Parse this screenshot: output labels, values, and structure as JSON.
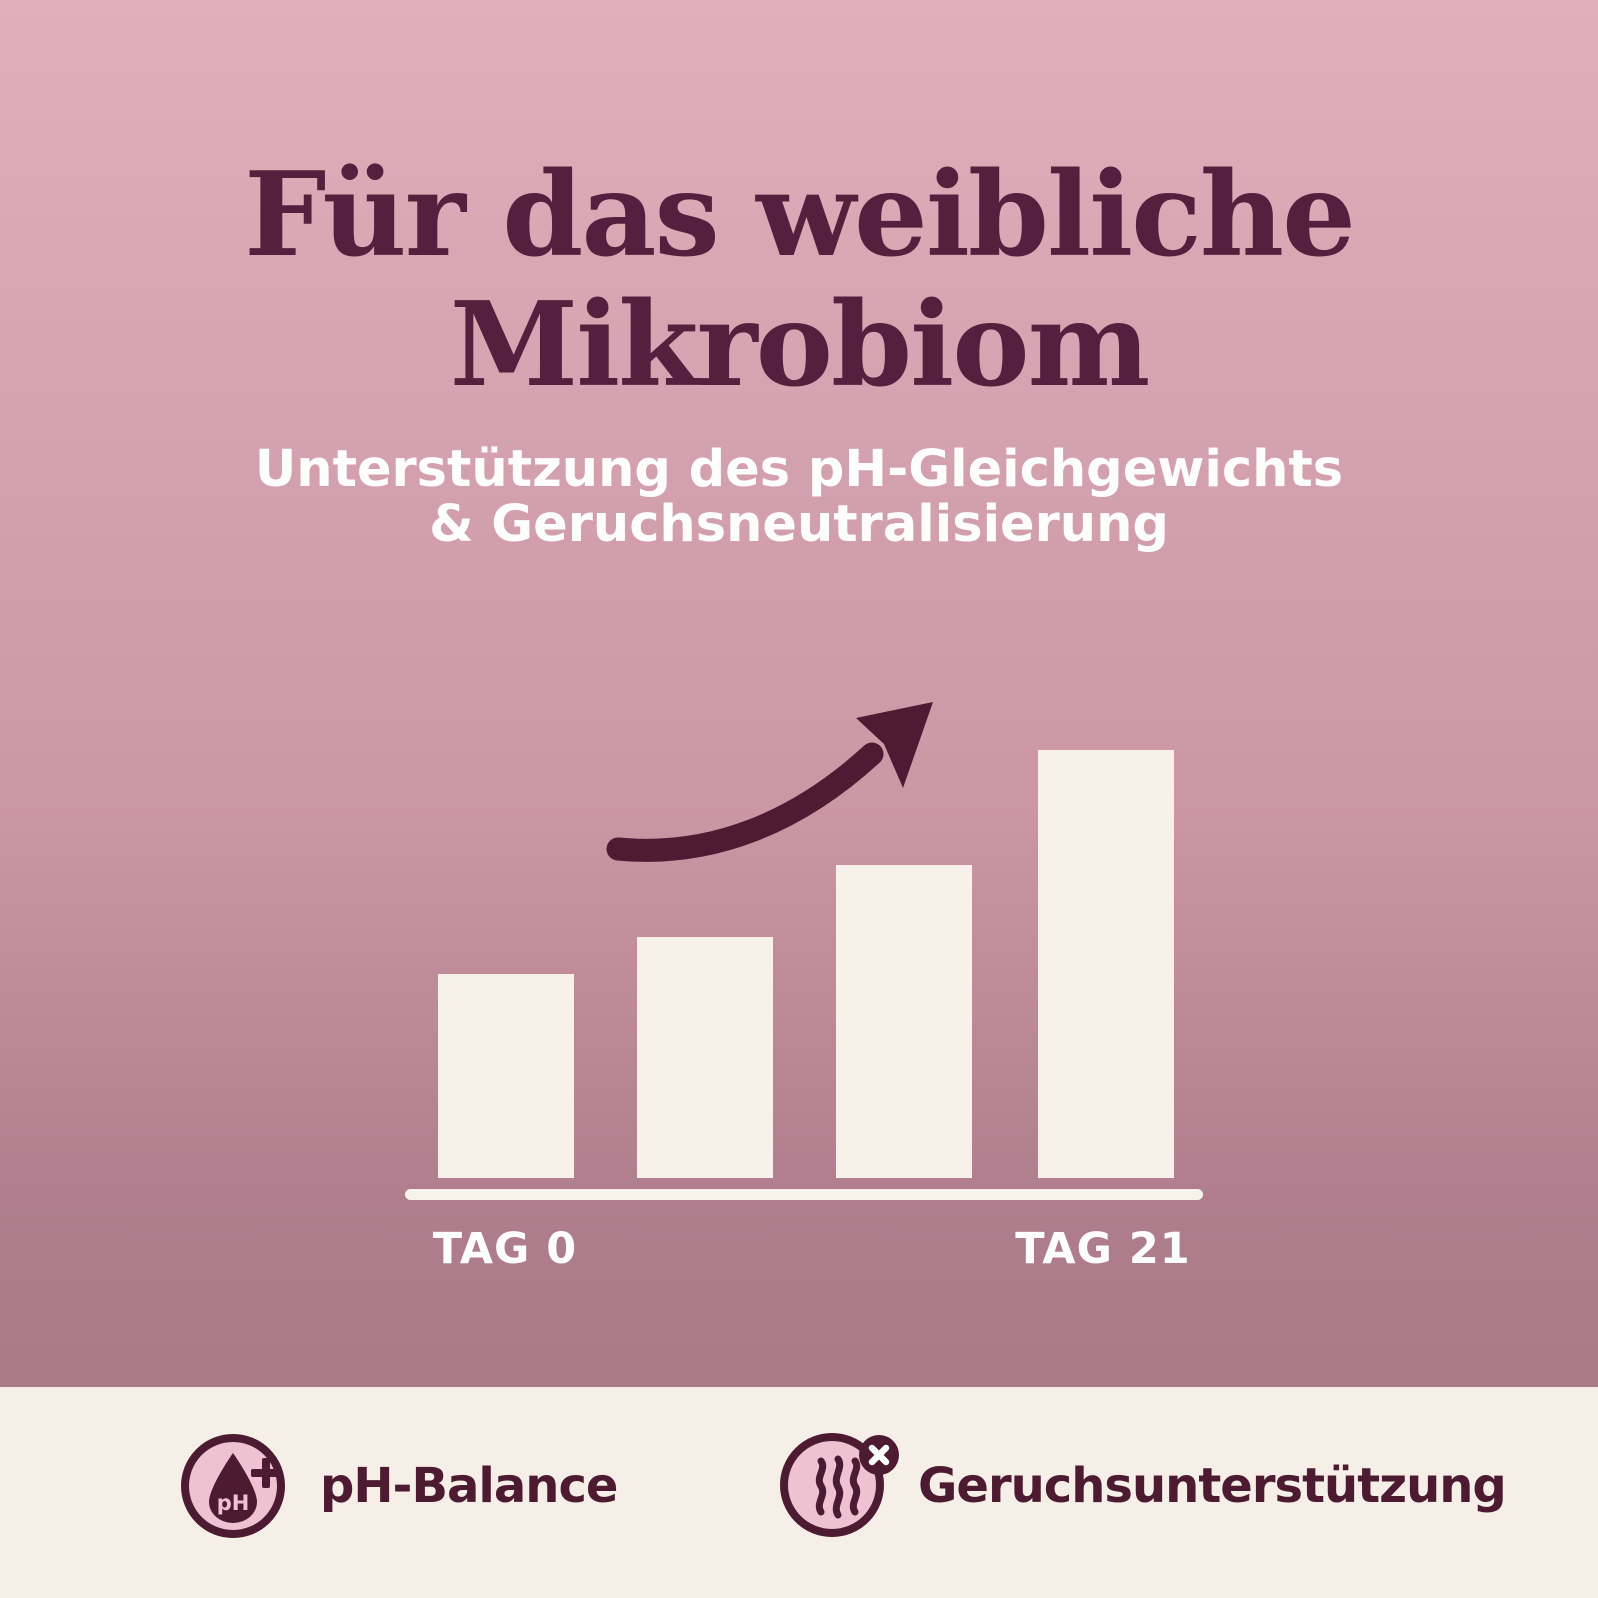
{
  "header": {
    "title_line1": "Für das weibliche",
    "title_line2": "Mikrobiom",
    "subtitle_line1": "Unterstützung des pH-Gleichgewichts",
    "subtitle_line2": "& Geruchsneutralisierung"
  },
  "chart_data": {
    "type": "bar",
    "categories": [
      "TAG 0",
      "",
      "",
      "TAG 21"
    ],
    "values": [
      204,
      241,
      313,
      428
    ],
    "values_unit": "relative bar height in px (unlabeled growth scale)",
    "visible_axis_labels": [
      "TAG 0",
      "TAG 21"
    ],
    "title": "",
    "xlabel": "",
    "ylabel": "",
    "grid": false,
    "legend": false,
    "bar_color": "#f7f1ea",
    "axis_color": "#f7f2ea",
    "annotations": [
      "hand-drawn curved arrow pointing up-right above the bars"
    ]
  },
  "footer": {
    "features": [
      {
        "icon": "ph-droplet-plus-icon",
        "icon_text": "pH",
        "label": "pH-Balance"
      },
      {
        "icon": "odor-waves-x-icon",
        "label": "Geruchsunterstützung"
      }
    ]
  },
  "colors": {
    "maroon_title": "#561f3d",
    "maroon_icon": "#4c1b31",
    "arrow": "#4f1a33",
    "pink_gradient_top": "#e1aebb",
    "pink_gradient_bottom": "#a97b88",
    "cream_strip": "#f5efe8",
    "bar_cream": "#f7f1ea",
    "icon_pink_fill": "#efc2d2",
    "subtitle_white": "#fdfdfd"
  }
}
